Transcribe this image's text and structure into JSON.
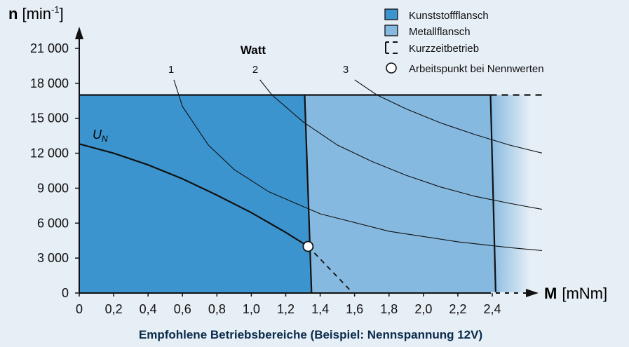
{
  "chart_data": {
    "type": "line",
    "title": "",
    "caption": "Empfohlene Betriebsbereiche (Beispiel: Nennspannung 12V)",
    "ylabel_bold": "n",
    "ylabel_unit": "[min",
    "ylabel_sup": "-1",
    "ylabel_close": "]",
    "xlabel_bold": "M",
    "xlabel_unit": "[mNm]",
    "xlim": [
      0,
      2.6
    ],
    "ylim": [
      0,
      22000
    ],
    "x_ticks": [
      0,
      0.2,
      0.4,
      0.6,
      0.8,
      1.0,
      1.2,
      1.4,
      1.6,
      1.8,
      2.0,
      2.2,
      2.4
    ],
    "x_tick_labels": [
      "0",
      "0,2",
      "0,4",
      "0,6",
      "0,8",
      "1,0",
      "1,2",
      "1,4",
      "1,6",
      "1,8",
      "2,0",
      "2,2",
      "2,4"
    ],
    "y_ticks": [
      0,
      3000,
      6000,
      9000,
      12000,
      15000,
      18000,
      21000
    ],
    "y_tick_labels": [
      "0",
      "3 000",
      "6 000",
      "9 000",
      "12 000",
      "15 000",
      "18 000",
      "21 000"
    ],
    "regions": {
      "kunststoff": {
        "name": "Kunststoffflansch",
        "color": "#3c94cf",
        "polygon": [
          [
            0,
            0
          ],
          [
            0,
            17000
          ],
          [
            1.31,
            17000
          ],
          [
            1.35,
            0
          ]
        ]
      },
      "metall": {
        "name": "Metallflansch",
        "color": "#86b9e0",
        "polygon": [
          [
            1.31,
            17000
          ],
          [
            2.39,
            17000
          ],
          [
            2.42,
            0
          ],
          [
            1.35,
            0
          ]
        ]
      }
    },
    "speed_limit": {
      "y": 17000,
      "solid_to": 2.39,
      "dashed_to": 2.7
    },
    "short_term": {
      "name": "Kurzzeitbetrieb"
    },
    "watt_label": "Watt",
    "power_curves": [
      {
        "name": "1",
        "label_x": 0.57,
        "label_y": 19000,
        "points": [
          [
            0.55,
            18300
          ],
          [
            0.6,
            16000
          ],
          [
            0.75,
            12700
          ],
          [
            0.9,
            10600
          ],
          [
            1.1,
            8700
          ],
          [
            1.4,
            6800
          ],
          [
            1.8,
            5300
          ],
          [
            2.2,
            4400
          ],
          [
            2.5,
            3900
          ],
          [
            2.72,
            3600
          ]
        ]
      },
      {
        "name": "2",
        "label_x": 1.07,
        "label_y": 19000,
        "points": [
          [
            1.05,
            18300
          ],
          [
            1.12,
            17000
          ],
          [
            1.3,
            14700
          ],
          [
            1.5,
            12700
          ],
          [
            1.7,
            11300
          ],
          [
            1.9,
            10100
          ],
          [
            2.1,
            9100
          ],
          [
            2.3,
            8300
          ],
          [
            2.5,
            7700
          ],
          [
            2.72,
            7100
          ]
        ]
      },
      {
        "name": "3",
        "label_x": 1.57,
        "label_y": 19000,
        "points": [
          [
            1.6,
            18300
          ],
          [
            1.73,
            17000
          ],
          [
            1.9,
            15800
          ],
          [
            2.1,
            14600
          ],
          [
            2.3,
            13600
          ],
          [
            2.5,
            12700
          ],
          [
            2.72,
            11900
          ]
        ]
      }
    ],
    "un_curve": {
      "name": "U",
      "subscript": "N",
      "points": [
        [
          0,
          12800
        ],
        [
          0.2,
          12000
        ],
        [
          0.4,
          11000
        ],
        [
          0.6,
          9800
        ],
        [
          0.8,
          8400
        ],
        [
          1.0,
          6900
        ],
        [
          1.2,
          5200
        ],
        [
          1.33,
          4000
        ]
      ]
    },
    "operating_point": {
      "x": 1.33,
      "y": 4000,
      "name": "Arbeitspunkt bei Nennwerten"
    },
    "dashed_extension": [
      [
        1.33,
        4000
      ],
      [
        1.59,
        0
      ]
    ],
    "legend": [
      {
        "label": "Kunststoffflansch",
        "symbol": "box",
        "color": "#3c94cf"
      },
      {
        "label": "Metallflansch",
        "symbol": "box",
        "color": "#86b9e0"
      },
      {
        "label": "Kurzzeitbetrieb",
        "symbol": "dashed-bracket"
      },
      {
        "label": "Arbeitspunkt bei Nennwerten",
        "symbol": "circle"
      }
    ],
    "grid": false,
    "legend_position": "top-right"
  }
}
